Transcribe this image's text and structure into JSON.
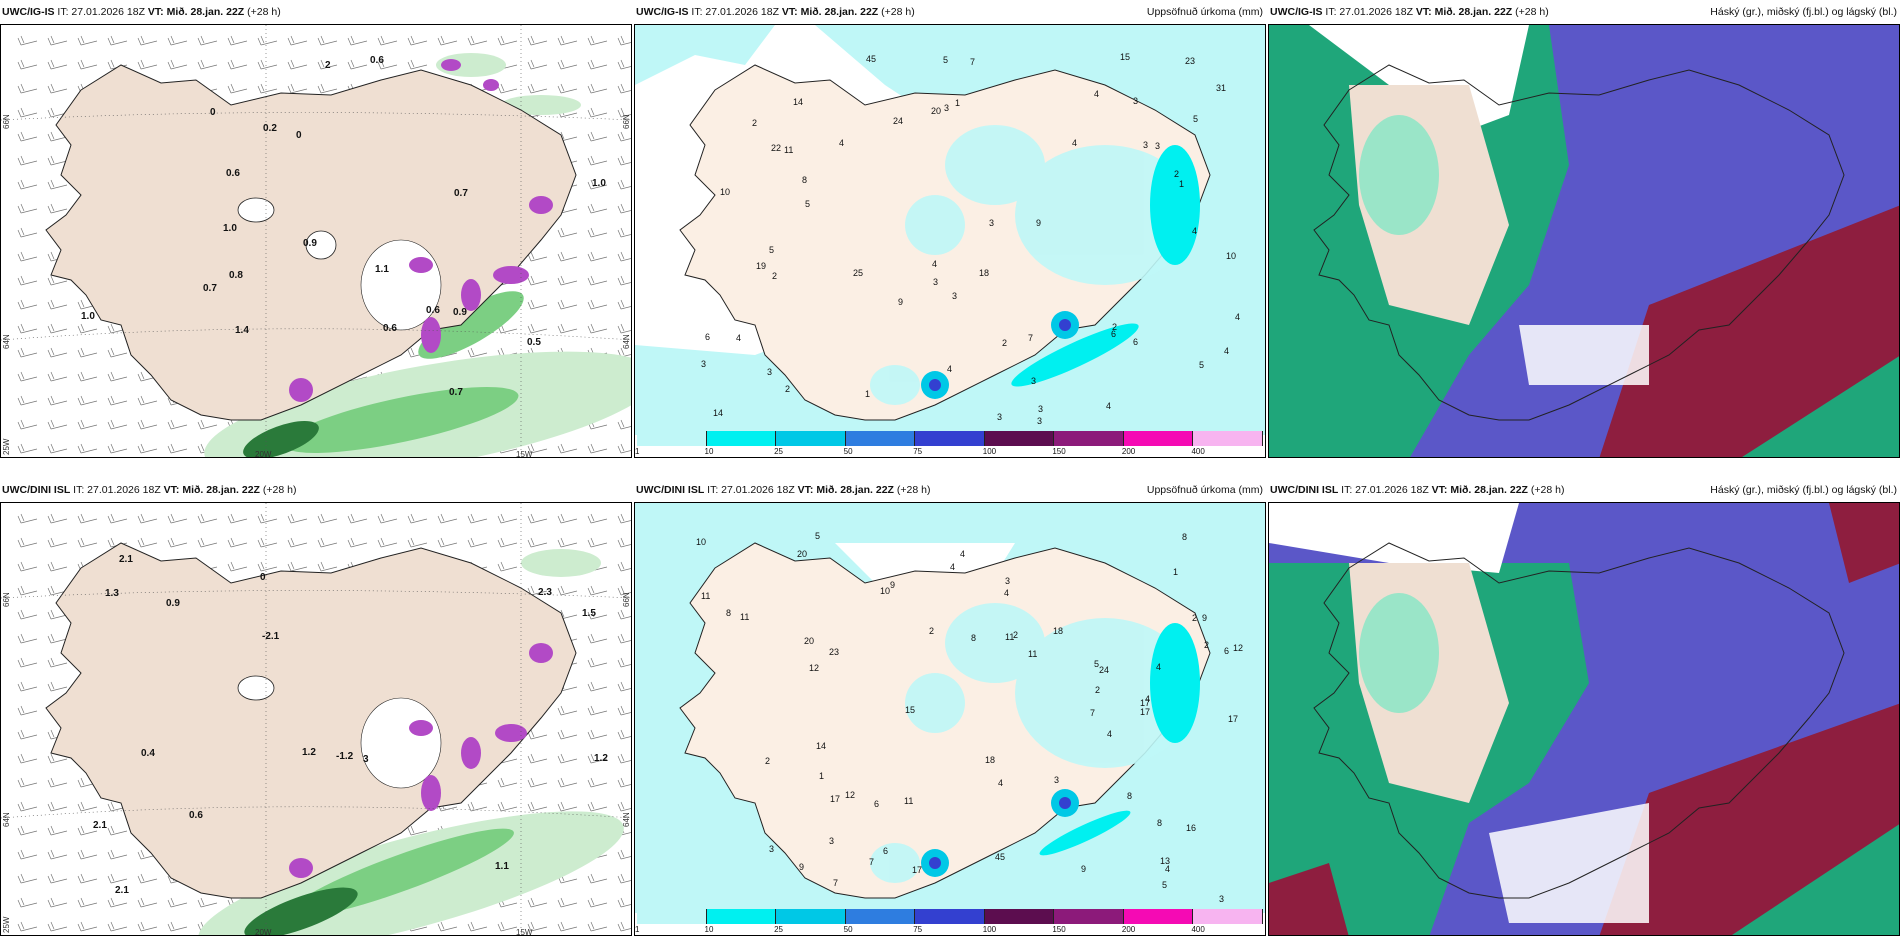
{
  "panels": [
    {
      "model": "UWC/IG-IS",
      "init": "IT: 27.01.2026 18Z",
      "valid": "VT: Mið. 28.jan. 22Z",
      "lead": "(+28 h)",
      "title": "",
      "kind": "wind",
      "axis": [
        "66N",
        "64N",
        "25W",
        "20W",
        "15W",
        "66N",
        "64N"
      ],
      "values": [
        "0.8",
        "0.7",
        "0.6",
        "1.4",
        "0.5",
        "2",
        "0",
        "0.6",
        "0.2",
        "1.0",
        "1.0",
        "1.1",
        "1.0",
        "0",
        "0.9",
        "0.7",
        "0.7",
        "0.6",
        "0.6",
        "0.9"
      ]
    },
    {
      "model": "UWC/IG-IS",
      "init": "IT: 27.01.2026 18Z",
      "valid": "VT: Mið. 28.jan. 22Z",
      "lead": "(+28 h)",
      "title": "Uppsöfnuð úrkoma (mm)",
      "kind": "precip",
      "values": [
        "3",
        "3",
        "3",
        "3",
        "2",
        "1",
        "2",
        "3",
        "5",
        "4",
        "5",
        "2",
        "4",
        "4",
        "3",
        "1",
        "2",
        "4",
        "4",
        "6",
        "7",
        "3",
        "2",
        "5",
        "4",
        "7",
        "4",
        "6",
        "18",
        "24",
        "5",
        "5",
        "3",
        "1",
        "10",
        "19",
        "14",
        "8",
        "22",
        "23",
        "14",
        "10",
        "3",
        "4",
        "11",
        "31",
        "15",
        "3",
        "6",
        "4",
        "9",
        "45",
        "4",
        "3",
        "3",
        "25",
        "20",
        "9",
        "2",
        "3"
      ]
    },
    {
      "model": "UWC/IG-IS",
      "init": "IT: 27.01.2026 18Z",
      "valid": "VT: Mið. 28.jan. 22Z",
      "lead": "(+28 h)",
      "title": "Háský (gr.), miðský (fj.bl.) og lágský (bl.)",
      "kind": "cloud"
    },
    {
      "model": "UWC/DINI ISL",
      "init": "IT: 27.01.2026 18Z",
      "valid": "VT: Mið. 28.jan. 22Z",
      "lead": "(+28 h)",
      "title": "",
      "kind": "wind",
      "axis": [
        "66N",
        "64N",
        "25W",
        "20W",
        "15W",
        "66N",
        "64N"
      ],
      "values": [
        "0.9",
        "1.2",
        "2.1",
        "-1.2",
        "-2.1",
        "0.4",
        "0",
        "1.3",
        "1.5",
        "2.1",
        "1.2",
        "2.3",
        "2.1",
        "1.1",
        "0.6",
        "3"
      ]
    },
    {
      "model": "UWC/DINI ISL",
      "init": "IT: 27.01.2026 18Z",
      "valid": "VT: Mið. 28.jan. 22Z",
      "lead": "(+28 h)",
      "title": "Uppsöfnuð úrkoma (mm)",
      "kind": "precip",
      "values": [
        "4",
        "4",
        "3",
        "6",
        "1",
        "7",
        "20",
        "2",
        "3",
        "4",
        "2",
        "2",
        "3",
        "2",
        "4",
        "4",
        "4",
        "9",
        "9",
        "8",
        "3",
        "2",
        "12",
        "5",
        "7",
        "7",
        "6",
        "8",
        "8",
        "23",
        "18",
        "24",
        "17",
        "18",
        "16",
        "15",
        "14",
        "11",
        "12",
        "45",
        "20",
        "17",
        "17",
        "10",
        "9",
        "8",
        "6",
        "5",
        "4",
        "3",
        "2",
        "1",
        "11",
        "17",
        "17",
        "12",
        "11",
        "10",
        "13",
        "11",
        "11",
        "9",
        "8",
        "5",
        "4"
      ]
    },
    {
      "model": "UWC/DINI ISL",
      "init": "IT: 27.01.2026 18Z",
      "valid": "VT: Mið. 28.jan. 22Z",
      "lead": "(+28 h)",
      "title": "Háský (gr.), miðský (fj.bl.) og lágský (bl.)",
      "kind": "cloud"
    }
  ],
  "colorbar": {
    "ticks": [
      "1",
      "10",
      "25",
      "50",
      "75",
      "100",
      "150",
      "200",
      "400"
    ],
    "colors": [
      "#bff7f7",
      "#00f0f0",
      "#00c8e6",
      "#2e7de0",
      "#3340d0",
      "#5c0d4f",
      "#8c1a7a",
      "#f50ab4",
      "#f7b4f0"
    ]
  },
  "legend_colors": {
    "land": "#efdfd2",
    "wind_green_light": "#cdeccf",
    "wind_green_mid": "#7ccf83",
    "wind_green_dark": "#2a7a3a",
    "precip_light": "#bff7f7",
    "cloud_high": "#1fa67a",
    "cloud_mid": "#5b57c8",
    "cloud_low": "#8e1e3f"
  }
}
